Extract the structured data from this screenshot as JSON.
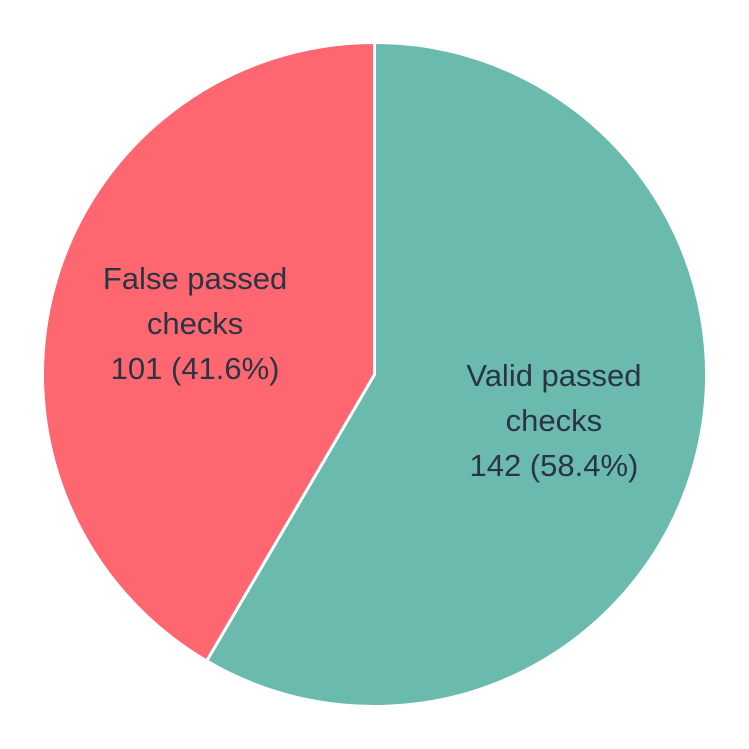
{
  "chart_data": {
    "type": "pie",
    "title": "",
    "start_angle_deg": 90,
    "direction": "clockwise",
    "slices": [
      {
        "label_lines": [
          "Valid passed",
          "checks"
        ],
        "value": 142,
        "value_text": "142 (58.4%)",
        "percent": 58.4,
        "color": "#6bbaae"
      },
      {
        "label_lines": [
          "False passed",
          "checks"
        ],
        "value": 101,
        "value_text": "101 (41.6%)",
        "percent": 41.6,
        "color": "#ff6770"
      }
    ]
  }
}
